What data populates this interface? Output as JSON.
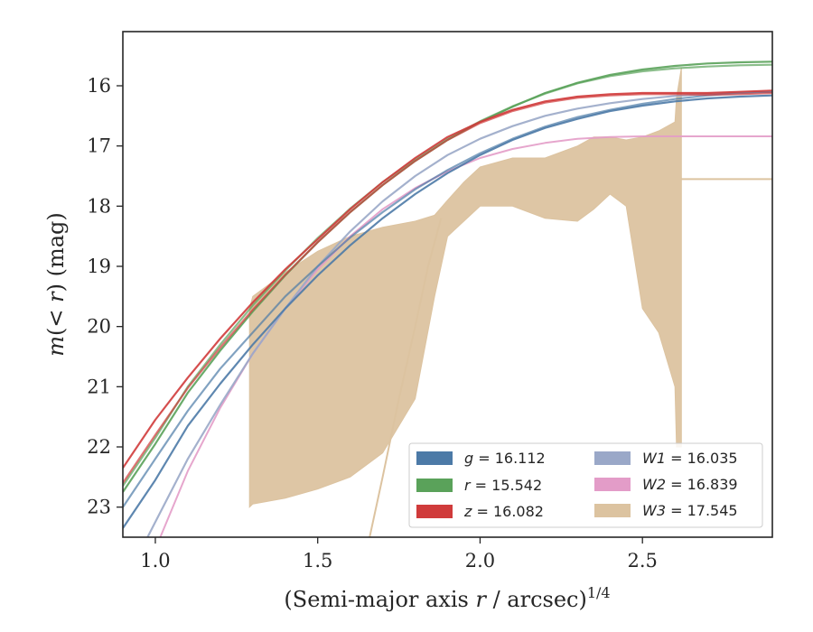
{
  "chart_data": {
    "type": "line",
    "xlabel": "(Semi-major axis r / arcsec)^1/4",
    "ylabel": "m(< r) (mag)",
    "xlim": [
      0.9,
      2.9
    ],
    "ylim": [
      23.5,
      15.1
    ],
    "y_inverted": true,
    "grid": false,
    "legend_location": "lower-right",
    "x_ticks": [
      1.0,
      1.5,
      2.0,
      2.5
    ],
    "x_tick_labels": [
      "1.0",
      "1.5",
      "2.0",
      "2.5"
    ],
    "y_ticks": [
      16,
      17,
      18,
      19,
      20,
      21,
      22,
      23
    ],
    "y_tick_labels": [
      "16",
      "17",
      "18",
      "19",
      "20",
      "21",
      "22",
      "23"
    ],
    "series": [
      {
        "key": "g",
        "band": "g",
        "label_value": "16.112",
        "color": "#4c7aa7",
        "curve_x": [
          0.9,
          1.0,
          1.1,
          1.2,
          1.3,
          1.4,
          1.5,
          1.6,
          1.7,
          1.8,
          1.9,
          2.0,
          2.1,
          2.2,
          2.3,
          2.4,
          2.5,
          2.6,
          2.7,
          2.8,
          2.9
        ],
        "lines": [
          [
            23.35,
            22.55,
            21.65,
            20.95,
            20.3,
            19.7,
            19.15,
            18.65,
            18.2,
            17.8,
            17.45,
            17.15,
            16.9,
            16.7,
            16.55,
            16.42,
            16.33,
            16.26,
            16.21,
            16.18,
            16.16
          ],
          [
            23.0,
            22.2,
            21.4,
            20.7,
            20.1,
            19.5,
            19.0,
            18.52,
            18.1,
            17.72,
            17.4,
            17.12,
            16.88,
            16.68,
            16.52,
            16.4,
            16.3,
            16.22,
            16.16,
            16.12,
            16.1
          ]
        ]
      },
      {
        "key": "r",
        "band": "r",
        "label_value": "15.542",
        "color": "#5aa25a",
        "curve_x": [
          0.9,
          1.0,
          1.1,
          1.2,
          1.3,
          1.4,
          1.5,
          1.6,
          1.7,
          1.8,
          1.9,
          2.0,
          2.1,
          2.2,
          2.3,
          2.4,
          2.5,
          2.6,
          2.7,
          2.8,
          2.9
        ],
        "lines": [
          [
            22.75,
            21.95,
            21.1,
            20.4,
            19.75,
            19.15,
            18.6,
            18.1,
            17.65,
            17.25,
            16.9,
            16.6,
            16.35,
            16.12,
            15.95,
            15.82,
            15.73,
            15.67,
            15.63,
            15.61,
            15.6
          ],
          [
            22.65,
            21.85,
            21.0,
            20.3,
            19.65,
            19.07,
            18.53,
            18.04,
            17.6,
            17.22,
            16.88,
            16.59,
            16.34,
            16.13,
            15.96,
            15.84,
            15.76,
            15.71,
            15.68,
            15.66,
            15.65
          ]
        ]
      },
      {
        "key": "z",
        "band": "z",
        "label_value": "16.082",
        "color": "#d03b3b",
        "curve_x": [
          0.9,
          1.0,
          1.1,
          1.2,
          1.3,
          1.4,
          1.5,
          1.6,
          1.7,
          1.8,
          1.9,
          2.0,
          2.1,
          2.2,
          2.3,
          2.4,
          2.5,
          2.6,
          2.7,
          2.8,
          2.9
        ],
        "lines": [
          [
            22.35,
            21.55,
            20.85,
            20.2,
            19.6,
            19.05,
            18.55,
            18.05,
            17.6,
            17.2,
            16.85,
            16.6,
            16.4,
            16.26,
            16.18,
            16.14,
            16.12,
            16.12,
            16.12,
            16.1,
            16.08
          ],
          [
            22.6,
            21.8,
            21.02,
            20.35,
            19.72,
            19.14,
            18.6,
            18.1,
            17.65,
            17.25,
            16.9,
            16.62,
            16.42,
            16.28,
            16.2,
            16.16,
            16.14,
            16.14,
            16.15,
            16.14,
            16.12
          ]
        ]
      },
      {
        "key": "w1",
        "band": "W1",
        "label_value": "16.035",
        "color": "#9aa8c8",
        "curve_x": [
          0.9,
          1.0,
          1.1,
          1.2,
          1.3,
          1.4,
          1.5,
          1.6,
          1.7,
          1.8,
          1.9,
          2.0,
          2.1,
          2.2,
          2.3,
          2.4,
          2.5,
          2.6,
          2.7,
          2.8,
          2.9
        ],
        "lines": [
          [
            24.3,
            23.25,
            22.2,
            21.3,
            20.45,
            19.7,
            19.0,
            18.42,
            17.92,
            17.5,
            17.15,
            16.88,
            16.67,
            16.5,
            16.38,
            16.29,
            16.22,
            16.17,
            16.13,
            16.11,
            16.1
          ]
        ]
      },
      {
        "key": "w2",
        "band": "W2",
        "label_value": "16.839",
        "color": "#e39cc8",
        "curve_x": [
          0.9,
          1.0,
          1.1,
          1.2,
          1.3,
          1.4,
          1.5,
          1.6,
          1.7,
          1.8,
          1.9,
          2.0,
          2.1,
          2.2,
          2.3,
          2.4,
          2.5,
          2.6,
          2.7,
          2.8,
          2.9
        ],
        "lines": [
          [
            25.0,
            23.7,
            22.4,
            21.35,
            20.45,
            19.7,
            19.05,
            18.5,
            18.05,
            17.7,
            17.42,
            17.2,
            17.05,
            16.95,
            16.88,
            16.85,
            16.84,
            16.84,
            16.84,
            16.84,
            16.84
          ]
        ]
      },
      {
        "key": "w3",
        "band": "W3",
        "label_value": "17.545",
        "color": "#dcc3a0",
        "band_x": [
          1.29,
          1.3,
          1.4,
          1.5,
          1.6,
          1.7,
          1.8,
          1.86,
          1.9,
          1.95,
          2.0,
          2.1,
          2.2,
          2.3,
          2.35,
          2.4,
          2.45,
          2.5,
          2.55,
          2.6,
          2.605,
          2.62
        ],
        "band_upper": [
          19.7,
          19.5,
          19.1,
          18.75,
          18.5,
          18.35,
          18.25,
          18.15,
          17.9,
          17.6,
          17.35,
          17.2,
          17.2,
          17.0,
          16.85,
          16.85,
          16.9,
          16.85,
          16.75,
          16.6,
          16.2,
          15.7
        ],
        "band_lower": [
          23.0,
          22.95,
          22.85,
          22.7,
          22.5,
          22.1,
          21.2,
          19.5,
          18.5,
          18.25,
          18.0,
          18.0,
          18.2,
          18.25,
          18.05,
          17.8,
          18.0,
          19.7,
          20.1,
          21.0,
          22.0,
          22.0
        ],
        "tail_x": [
          1.66,
          1.7,
          1.75,
          1.8,
          1.84,
          1.88
        ],
        "tail_y": [
          23.5,
          22.5,
          21.2,
          20.0,
          19.0,
          18.2
        ],
        "flat_y": 17.55,
        "flat_x": [
          2.62,
          2.9
        ]
      }
    ]
  }
}
